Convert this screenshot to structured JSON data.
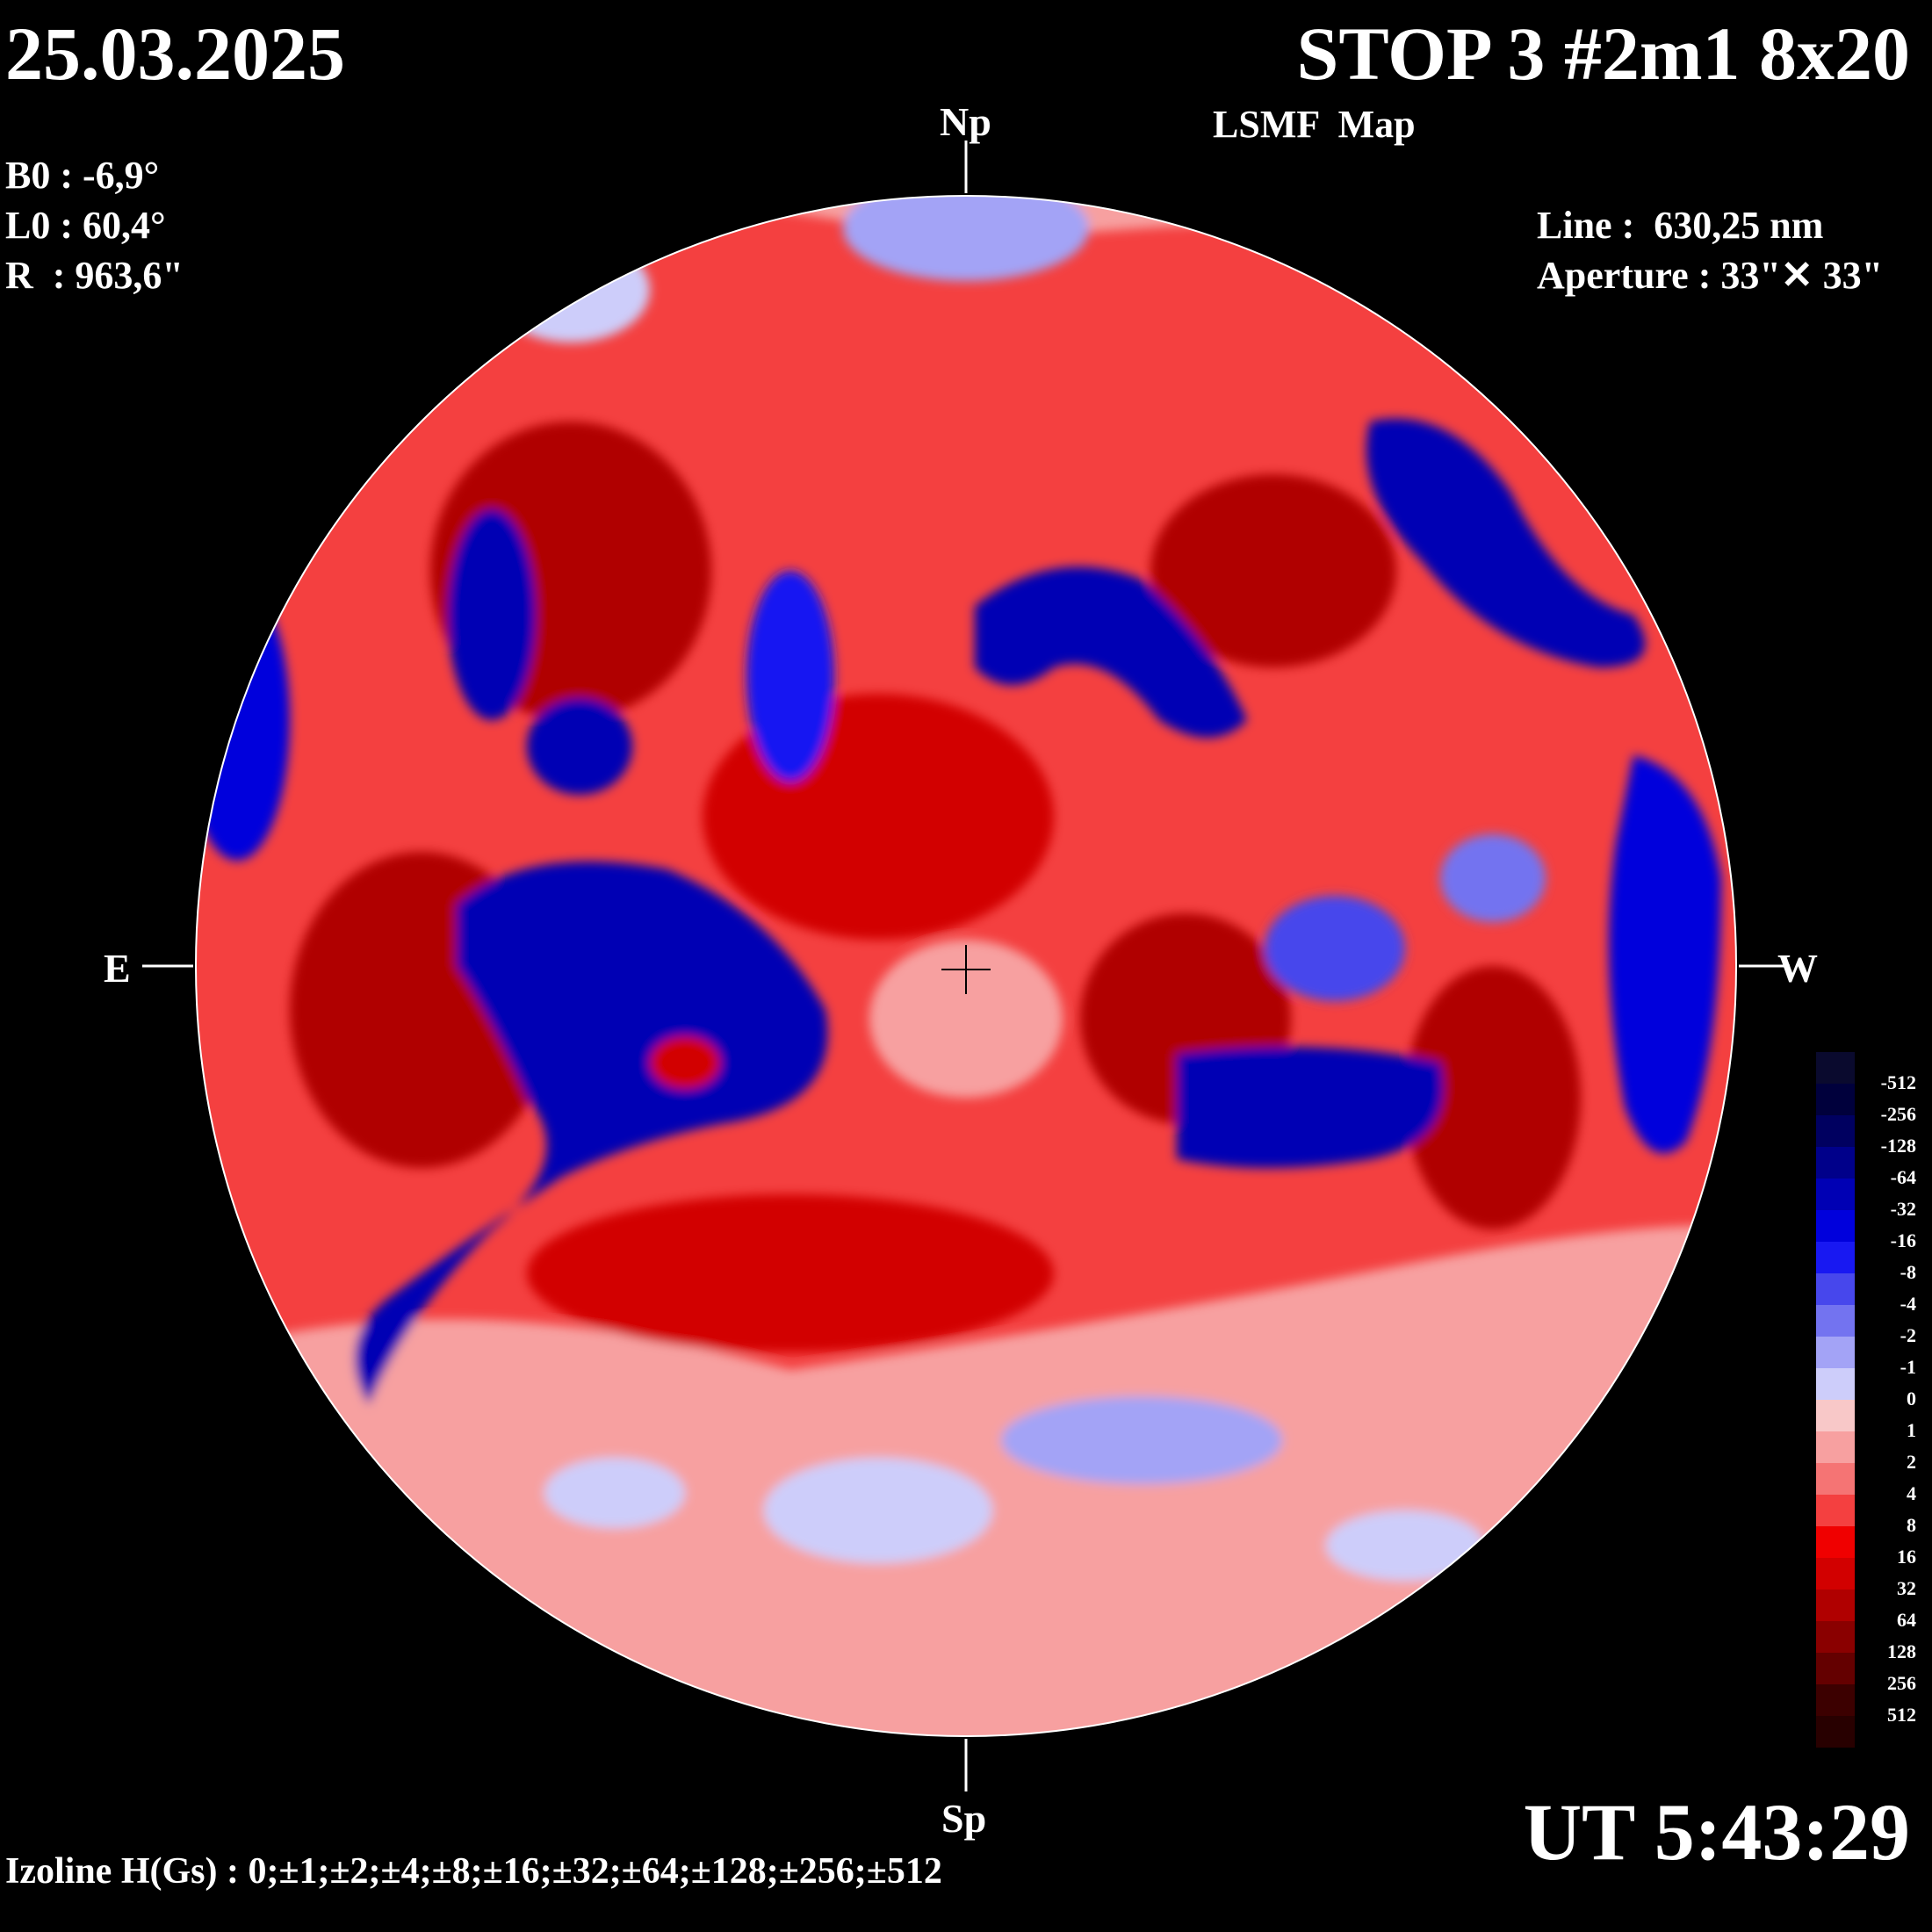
{
  "header": {
    "date": "25.03.2025",
    "station": "STOP 3 #2m1 8x20",
    "map_type": "LSMF  Map"
  },
  "params": {
    "b0": "B0 : -6,9°",
    "l0": "L0 : 60,4°",
    "radius": "R  : 963,6\"",
    "line": "Line :  630,25 nm",
    "aperture": "Aperture : 33\"✕ 33\""
  },
  "compass": {
    "north": "Np",
    "south": "Sp",
    "east": "E",
    "west": "W"
  },
  "time": "UT 5:43:29",
  "footer": {
    "isolines": "Izoline H(Gs) : 0;±1;±2;±4;±8;±16;±32;±64;±128;±256;±512"
  },
  "legend": {
    "labels": [
      "-512",
      "-256",
      "-128",
      "-64",
      "-32",
      "-16",
      "-8",
      "-4",
      "-2",
      "-1",
      "0",
      "1",
      "2",
      "4",
      "8",
      "16",
      "32",
      "64",
      "128",
      "256",
      "512"
    ],
    "colors": [
      "#0a0a2e",
      "#00003c",
      "#000060",
      "#00008a",
      "#0000b4",
      "#0000dc",
      "#1818f2",
      "#4747ec",
      "#7373f0",
      "#a3a3f6",
      "#cdcdfa",
      "#f8c8c8",
      "#f7a0a0",
      "#f57474",
      "#f44040",
      "#f00000",
      "#d20000",
      "#b00000",
      "#8a0000",
      "#640000",
      "#3c0000",
      "#280000"
    ]
  },
  "colors": {
    "background": "#000000",
    "positive_field": "#f00000",
    "negative_field": "#0000dc",
    "neutral": "#f8c8c8"
  }
}
